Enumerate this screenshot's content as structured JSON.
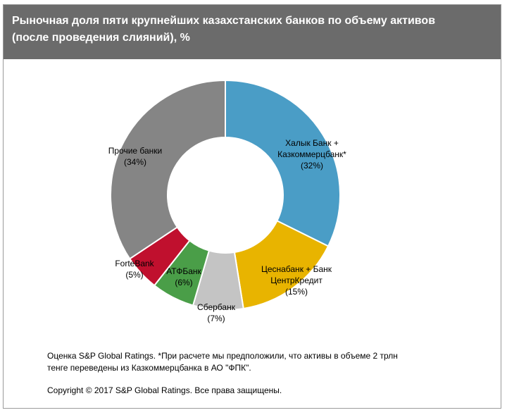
{
  "header": {
    "title_line1": "Рыночная доля пяти крупнейших казахстанских банков по объему  активов",
    "title_line2": "(после проведения слияний), %"
  },
  "chart_data": {
    "type": "pie",
    "donut": true,
    "title": "Рыночная доля пяти крупнейших казахстанских банков по объему  активов (после проведения слияний), %",
    "slices": [
      {
        "label_lines": [
          "Халык Банк +",
          "Казкоммерцбанк*"
        ],
        "value": 32,
        "value_label": "(32%)",
        "color": "#4a9dc6"
      },
      {
        "label_lines": [
          "Цеснабанк + Банк",
          "ЦентрКредит"
        ],
        "value": 15,
        "value_label": "(15%)",
        "color": "#e8b400"
      },
      {
        "label_lines": [
          "Сбербанк"
        ],
        "value": 7,
        "value_label": "(7%)",
        "color": "#c4c4c4"
      },
      {
        "label_lines": [
          "АТФБанк"
        ],
        "value": 6,
        "value_label": "(6%)",
        "color": "#4a9e48"
      },
      {
        "label_lines": [
          "ForteBank"
        ],
        "value": 5,
        "value_label": "(5%)",
        "color": "#c0102e"
      },
      {
        "label_lines": [
          "Прочие банки"
        ],
        "value": 34,
        "value_label": "(34%)",
        "color": "#858585"
      }
    ]
  },
  "footnote": {
    "line1": "Оценка S&P Global Ratings. *При расчете мы предположили, что активы в объеме 2 трлн",
    "line2": "тенге переведены из Казкоммерцбанка в АО \"ФПК\".",
    "copyright": "Copyright © 2017 S&P Global Ratings. Все права защищены."
  }
}
